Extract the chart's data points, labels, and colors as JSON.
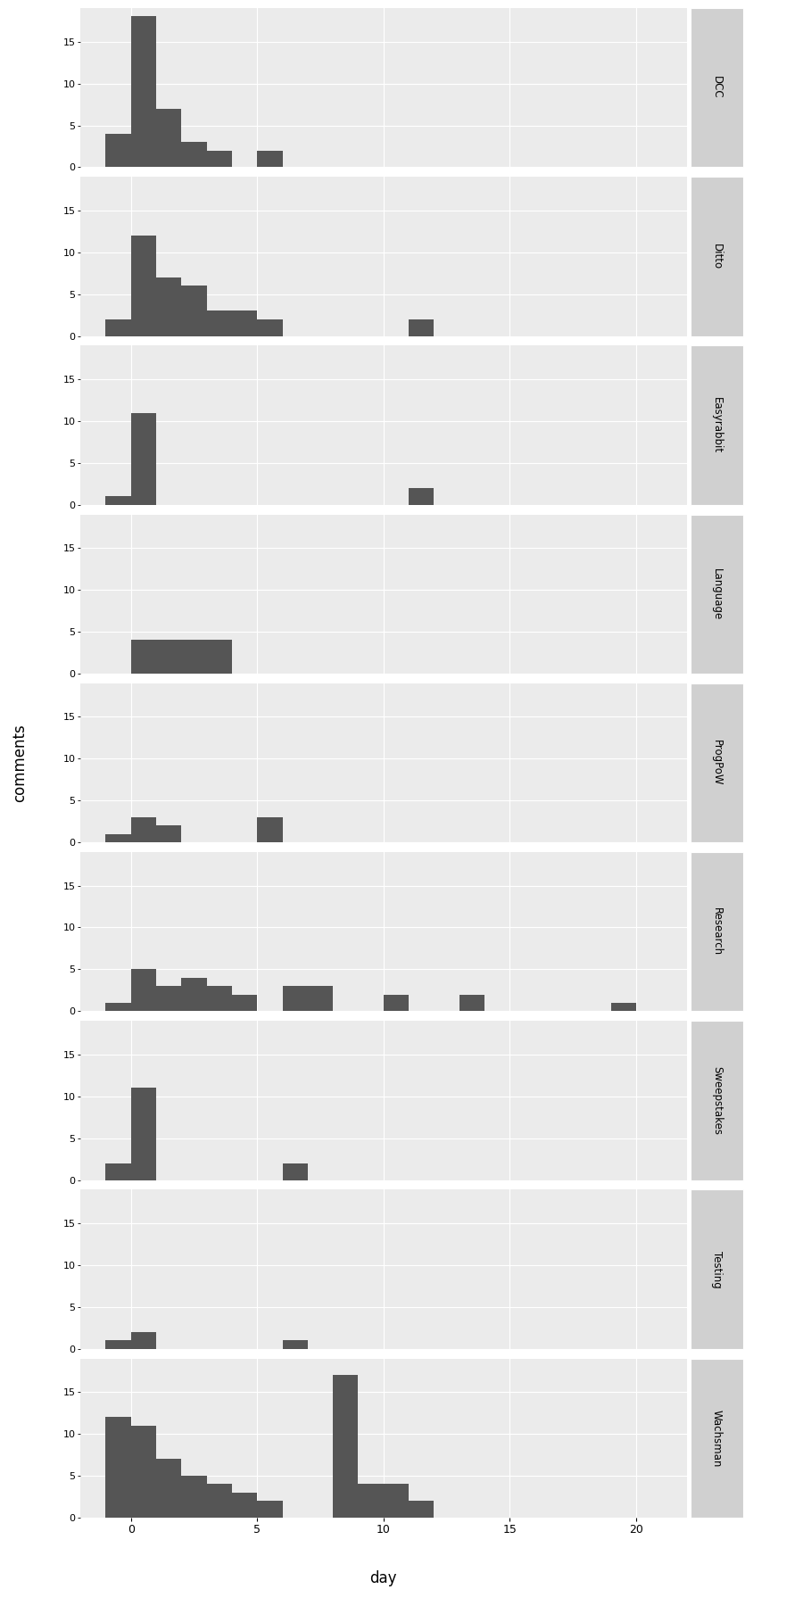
{
  "proposals": [
    "DCC",
    "Ditto",
    "Easyrabbit",
    "Language",
    "ProgPoW",
    "Research",
    "Sweepstakes",
    "Testing",
    "Wachsman"
  ],
  "bar_color": "#555555",
  "bg_color": "#EBEBEB",
  "strip_color": "#D0D0D0",
  "grid_color": "#FFFFFF",
  "xlim": [
    -2,
    22
  ],
  "ylim": [
    0,
    19
  ],
  "yticks": [
    0,
    5,
    10,
    15
  ],
  "xticks": [
    0,
    5,
    10,
    15,
    20
  ],
  "xlabel": "day",
  "ylabel": "comments",
  "hist_counts": {
    "DCC": [
      0,
      4,
      18,
      7,
      3,
      2,
      0,
      2,
      0,
      0,
      0,
      0,
      0,
      0,
      0,
      0,
      0,
      0,
      0,
      0,
      0,
      0,
      0
    ],
    "Ditto": [
      0,
      2,
      12,
      7,
      6,
      3,
      3,
      2,
      0,
      0,
      0,
      0,
      0,
      2,
      0,
      0,
      0,
      0,
      0,
      0,
      0,
      0,
      0
    ],
    "Easyrabbit": [
      0,
      1,
      11,
      0,
      0,
      0,
      0,
      0,
      0,
      0,
      0,
      0,
      0,
      2,
      0,
      0,
      0,
      0,
      0,
      0,
      0,
      0,
      0
    ],
    "Language": [
      0,
      0,
      4,
      4,
      4,
      4,
      0,
      0,
      0,
      0,
      0,
      0,
      0,
      0,
      0,
      0,
      0,
      0,
      0,
      0,
      0,
      0,
      0
    ],
    "ProgPoW": [
      0,
      1,
      3,
      2,
      0,
      0,
      0,
      3,
      0,
      0,
      0,
      0,
      0,
      0,
      0,
      0,
      0,
      0,
      0,
      0,
      0,
      0,
      0
    ],
    "Research": [
      0,
      1,
      5,
      3,
      4,
      3,
      2,
      0,
      3,
      3,
      0,
      0,
      2,
      0,
      0,
      2,
      0,
      0,
      0,
      0,
      0,
      1,
      0
    ],
    "Sweepstakes": [
      0,
      2,
      11,
      0,
      0,
      0,
      0,
      0,
      2,
      0,
      0,
      0,
      0,
      0,
      0,
      0,
      0,
      0,
      0,
      0,
      0,
      0,
      0
    ],
    "Testing": [
      0,
      1,
      2,
      0,
      0,
      0,
      0,
      0,
      1,
      0,
      0,
      0,
      0,
      0,
      0,
      0,
      0,
      0,
      0,
      0,
      0,
      0,
      0
    ],
    "Wachsman": [
      0,
      12,
      11,
      7,
      5,
      4,
      3,
      2,
      0,
      0,
      17,
      4,
      4,
      2,
      0,
      0,
      0,
      0,
      0,
      0,
      0,
      0,
      0
    ]
  },
  "bin_edges": [
    -2,
    -1,
    0,
    1,
    2,
    3,
    4,
    5,
    6,
    7,
    8,
    9,
    10,
    11,
    12,
    13,
    14,
    15,
    16,
    17,
    18,
    19,
    20,
    21
  ]
}
